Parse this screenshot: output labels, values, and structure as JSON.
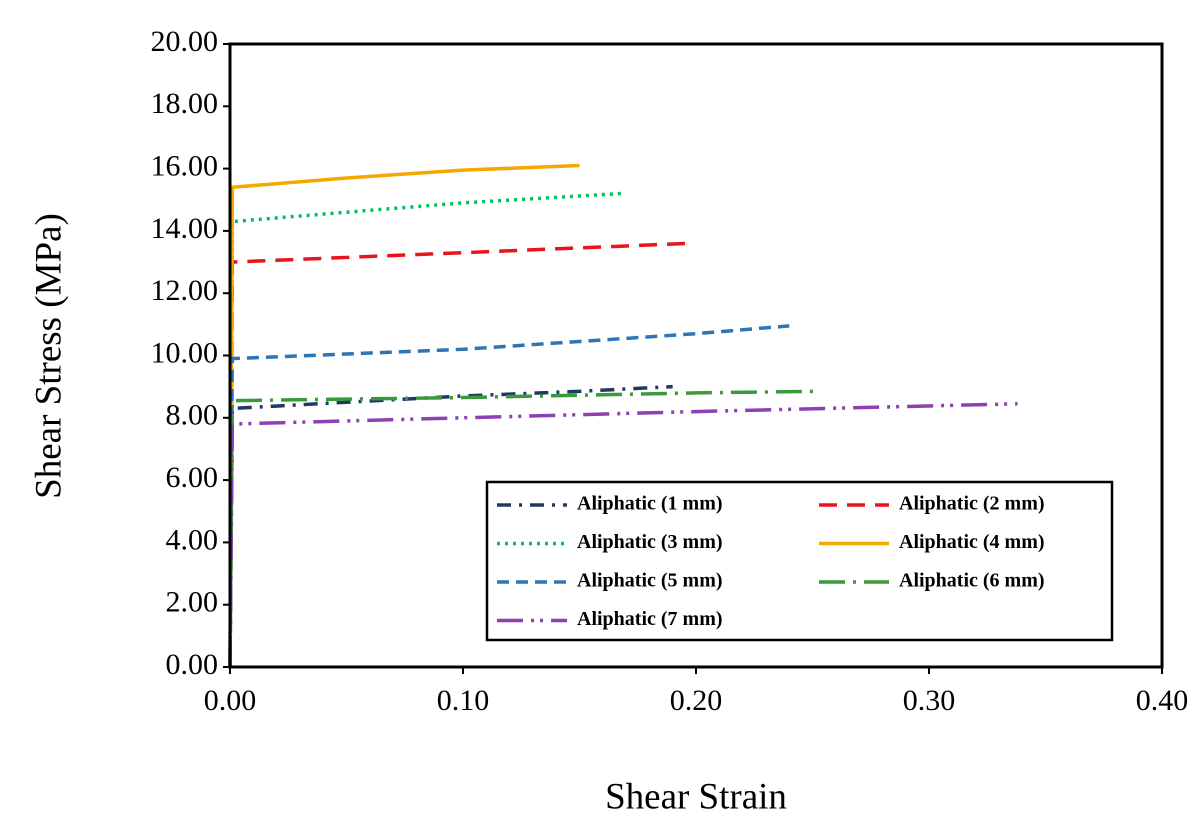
{
  "chart_data": {
    "type": "line",
    "x_label": "Shear Strain",
    "y_label": "Shear Stress (MPa)",
    "xlim": [
      0,
      0.4
    ],
    "ylim": [
      0,
      20
    ],
    "xticks": [
      {
        "value": 0,
        "label": "0.00"
      },
      {
        "value": 0.1,
        "label": "0.10"
      },
      {
        "value": 0.2,
        "label": "0.20"
      },
      {
        "value": 0.3,
        "label": "0.30"
      },
      {
        "value": 0.4,
        "label": "0.40"
      }
    ],
    "yticks": [
      {
        "value": 0,
        "label": "0.00"
      },
      {
        "value": 2,
        "label": "2.00"
      },
      {
        "value": 4,
        "label": "4.00"
      },
      {
        "value": 6,
        "label": "6.00"
      },
      {
        "value": 8,
        "label": "8.00"
      },
      {
        "value": 10,
        "label": "10.00"
      },
      {
        "value": 12,
        "label": "12.00"
      },
      {
        "value": 14,
        "label": "14.00"
      },
      {
        "value": 16,
        "label": "16.00"
      },
      {
        "value": 18,
        "label": "18.00"
      },
      {
        "value": 20,
        "label": "20.00"
      }
    ],
    "legend": "lower right",
    "series": [
      {
        "name": "Aliphatic (1 mm)",
        "color": "#1f3864",
        "linestyle": "dashdot",
        "x": [
          0,
          0.001,
          0.05,
          0.1,
          0.15,
          0.19
        ],
        "values": [
          0,
          8.3,
          8.5,
          8.7,
          8.85,
          9.0
        ]
      },
      {
        "name": "Aliphatic (2 mm)",
        "color": "#e8141c",
        "linestyle": "dashed",
        "x": [
          0,
          0.001,
          0.1,
          0.197
        ],
        "values": [
          0,
          13.0,
          13.3,
          13.6
        ]
      },
      {
        "name": "Aliphatic (3 mm)",
        "color": "#00c060",
        "linestyle": "dotted",
        "x": [
          0,
          0.001,
          0.05,
          0.1,
          0.168
        ],
        "values": [
          0,
          14.3,
          14.6,
          14.9,
          15.2
        ]
      },
      {
        "name": "Aliphatic (4 mm)",
        "color": "#f5a800",
        "linestyle": "solid",
        "x": [
          0,
          0.001,
          0.05,
          0.1,
          0.15
        ],
        "values": [
          0,
          15.4,
          15.7,
          15.95,
          16.1
        ]
      },
      {
        "name": "Aliphatic (5 mm)",
        "color": "#2e75b6",
        "linestyle": "shortdash",
        "x": [
          0,
          0.001,
          0.1,
          0.2,
          0.24
        ],
        "values": [
          0,
          9.9,
          10.2,
          10.7,
          10.95
        ]
      },
      {
        "name": "Aliphatic (6 mm)",
        "color": "#3a9a3a",
        "linestyle": "longdashdot",
        "x": [
          0,
          0.001,
          0.1,
          0.2,
          0.252
        ],
        "values": [
          0,
          8.55,
          8.65,
          8.8,
          8.85
        ]
      },
      {
        "name": "Aliphatic (7 mm)",
        "color": "#8e3fb2",
        "linestyle": "longdashdotdot",
        "x": [
          0,
          0.001,
          0.1,
          0.2,
          0.338
        ],
        "values": [
          0,
          7.8,
          8.0,
          8.2,
          8.45
        ]
      }
    ]
  }
}
